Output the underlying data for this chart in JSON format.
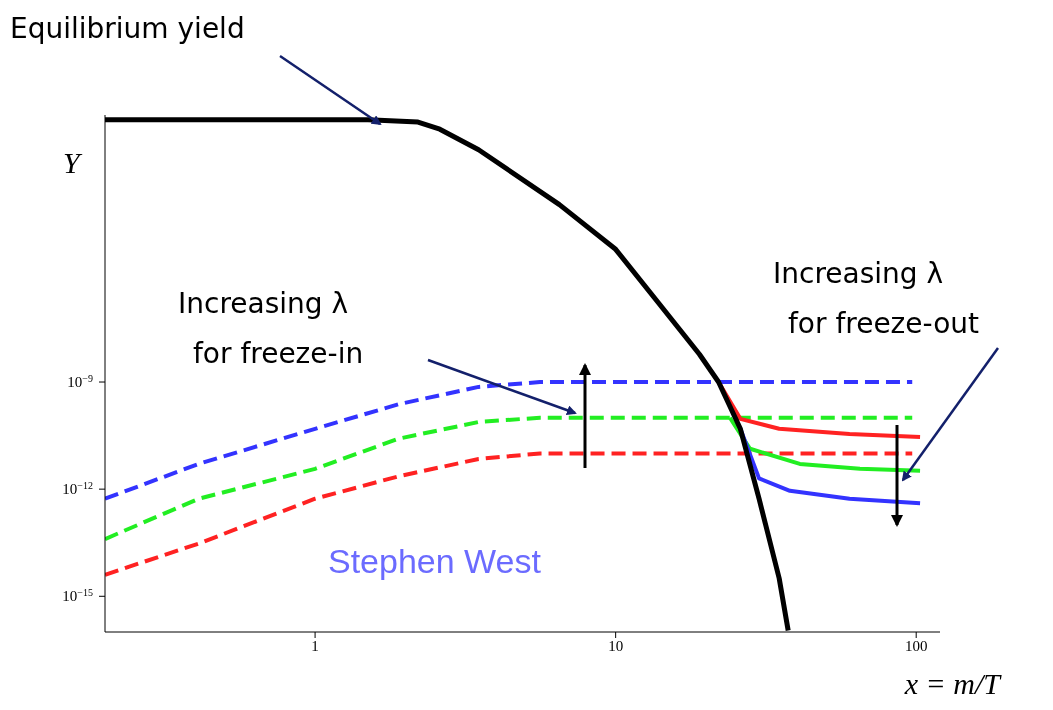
{
  "chart_data": {
    "type": "line",
    "xlabel": "x = m/T",
    "ylabel": "Y",
    "log": "xy",
    "marker": "none",
    "xlim": [
      0.2,
      120
    ],
    "xticks": [
      1,
      10,
      100
    ],
    "ylim": [
      1e-16,
      0.03
    ],
    "yticks": [
      {
        "value": 1e-15,
        "label": "10$^{−15}$"
      },
      {
        "value": 1e-12,
        "label": "10$^{−12}$"
      },
      {
        "value": 1e-09,
        "label": "10$^{−9}$"
      }
    ],
    "series": [
      {
        "color": "#3333ff",
        "line_style": "dashed",
        "x": [
          0.2,
          0.41,
          1,
          1.9,
          3.5,
          5.6,
          10,
          30,
          97
        ],
        "values": [
          5.4e-13,
          5.1e-12,
          4.9e-11,
          2.4e-10,
          7.3e-10,
          1e-09,
          1e-09,
          1e-09,
          1e-09
        ]
      },
      {
        "color": "#22ee22",
        "line_style": "dashed",
        "x": [
          0.2,
          0.41,
          1,
          1.9,
          3.5,
          5.6,
          10,
          30,
          97
        ],
        "values": [
          4e-14,
          5.4e-13,
          3.7e-12,
          2.6e-11,
          7.6e-11,
          1e-10,
          1e-10,
          1e-10,
          1e-10
        ]
      },
      {
        "color": "#ff2222",
        "line_style": "dashed",
        "x": [
          0.2,
          0.41,
          1,
          1.9,
          3.5,
          5.6,
          10,
          30,
          97
        ],
        "values": [
          4e-15,
          3e-14,
          5.4e-13,
          2.3e-12,
          7e-12,
          1e-11,
          1e-11,
          1e-11,
          1e-11
        ]
      },
      {
        "color": "#ff2222",
        "line_style": "solid",
        "x": [
          22,
          26,
          35,
          60,
          103
        ],
        "values": [
          1e-09,
          9.3e-11,
          4.9e-11,
          3.5e-11,
          2.9e-11
        ]
      },
      {
        "color": "#22ee22",
        "line_style": "solid",
        "x": [
          24,
          28,
          41,
          65,
          103
        ],
        "values": [
          1e-10,
          1.35e-11,
          5.1e-12,
          3.7e-12,
          3.3e-12
        ]
      },
      {
        "color": "#3333ff",
        "line_style": "solid",
        "x": [
          26,
          30,
          38,
          60,
          103
        ],
        "values": [
          4.9e-11,
          2e-12,
          9e-13,
          5.4e-13,
          4e-13
        ]
      },
      {
        "color": "#000000",
        "line_style": "solid",
        "x": [
          0.2,
          1,
          1.5,
          2.2,
          2.6,
          3.5,
          6.5,
          10,
          14,
          19,
          22,
          26,
          30,
          35,
          37.5
        ],
        "values": [
          0.022,
          0.022,
          0.022,
          0.019,
          0.012,
          0.0032,
          9.3e-05,
          5.2e-06,
          1.5e-07,
          6e-09,
          1e-09,
          4.9e-11,
          5.4e-13,
          3.2e-15,
          1.1e-16
        ]
      }
    ],
    "annotations": [
      "Equilibrium yield",
      "Increasing λ\nfor freeze-in",
      "Increasing λ\nfor freeze-out",
      "Stephen West"
    ]
  }
}
